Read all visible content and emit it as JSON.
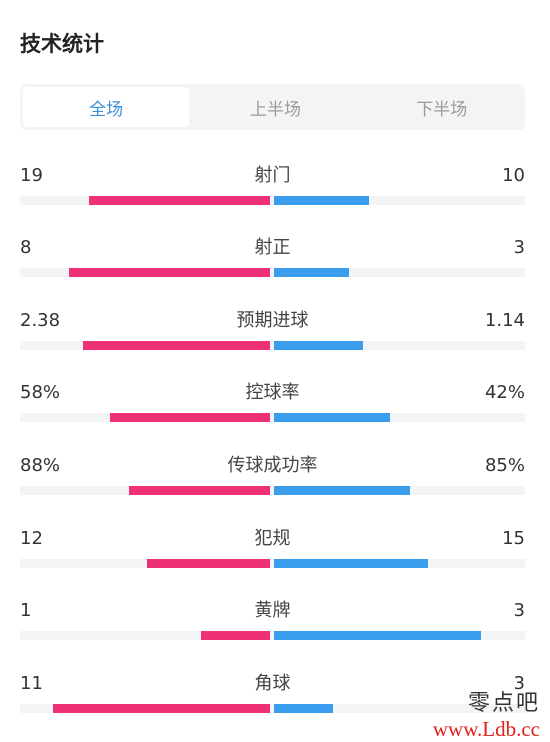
{
  "header": {
    "title": "技术统计"
  },
  "tabs": [
    {
      "label": "全场",
      "active": true
    },
    {
      "label": "上半场",
      "active": false
    },
    {
      "label": "下半场",
      "active": false
    }
  ],
  "colors": {
    "home": "#ee3176",
    "away": "#3b9ded",
    "active_tab": "#3a8fd8"
  },
  "stats": [
    {
      "label": "射门",
      "home": "19",
      "away": "10",
      "home_ratio": 0.655,
      "away_ratio": 0.345
    },
    {
      "label": "射正",
      "home": "8",
      "away": "3",
      "home_ratio": 0.727,
      "away_ratio": 0.273
    },
    {
      "label": "预期进球",
      "home": "2.38",
      "away": "1.14",
      "home_ratio": 0.676,
      "away_ratio": 0.324
    },
    {
      "label": "控球率",
      "home": "58%",
      "away": "42%",
      "home_ratio": 0.58,
      "away_ratio": 0.42
    },
    {
      "label": "传球成功率",
      "home": "88%",
      "away": "85%",
      "home_ratio": 0.509,
      "away_ratio": 0.491
    },
    {
      "label": "犯规",
      "home": "12",
      "away": "15",
      "home_ratio": 0.444,
      "away_ratio": 0.556
    },
    {
      "label": "黄牌",
      "home": "1",
      "away": "3",
      "home_ratio": 0.25,
      "away_ratio": 0.75
    },
    {
      "label": "角球",
      "home": "11",
      "away": "3",
      "home_ratio": 0.786,
      "away_ratio": 0.214
    }
  ],
  "watermark": {
    "text_cn": "零点吧",
    "url": "www.Ldb.cc"
  }
}
